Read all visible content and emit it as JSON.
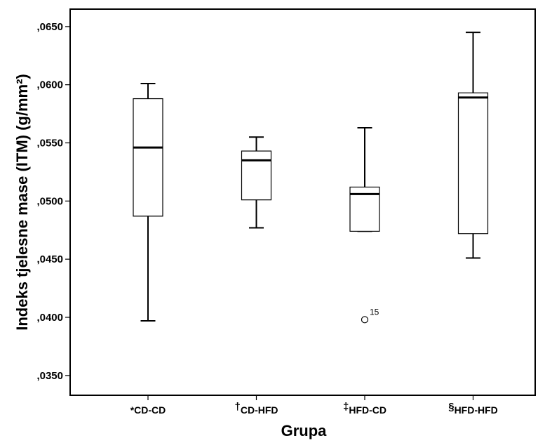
{
  "chart_data": {
    "type": "box",
    "xlabel": "Grupa",
    "ylabel": "Indeks tjelesne mase (ITM) (g/mm²)",
    "ylim": [
      0.0333,
      0.0665
    ],
    "yticks": [
      {
        "value": 0.035,
        "label": ",0350"
      },
      {
        "value": 0.04,
        "label": ",0400"
      },
      {
        "value": 0.045,
        "label": ",0450"
      },
      {
        "value": 0.05,
        "label": ",0500"
      },
      {
        "value": 0.055,
        "label": ",0550"
      },
      {
        "value": 0.06,
        "label": ",0600"
      },
      {
        "value": 0.065,
        "label": ",0650"
      }
    ],
    "groups": [
      {
        "symbol": "*",
        "label": "CD-CD",
        "symbol_style": "inline",
        "whisker_low": 0.0397,
        "q1": 0.0487,
        "median": 0.0546,
        "q3": 0.0588,
        "whisker_high": 0.0601,
        "outliers": []
      },
      {
        "symbol": "†",
        "label": "CD-HFD",
        "symbol_style": "raised",
        "whisker_low": 0.0477,
        "q1": 0.0501,
        "median": 0.0535,
        "q3": 0.0543,
        "whisker_high": 0.0555,
        "outliers": []
      },
      {
        "symbol": "‡",
        "label": "HFD-CD",
        "symbol_style": "raised",
        "whisker_low": 0.0474,
        "q1": 0.0474,
        "median": 0.0506,
        "q3": 0.0512,
        "whisker_high": 0.0563,
        "outliers": [
          {
            "value": 0.0398,
            "label": "15"
          }
        ]
      },
      {
        "symbol": "§",
        "label": "HFD-HFD",
        "symbol_style": "raised",
        "whisker_low": 0.0451,
        "q1": 0.0472,
        "median": 0.0589,
        "q3": 0.0593,
        "whisker_high": 0.0645,
        "outliers": []
      }
    ],
    "grid": false,
    "legend": "none"
  }
}
